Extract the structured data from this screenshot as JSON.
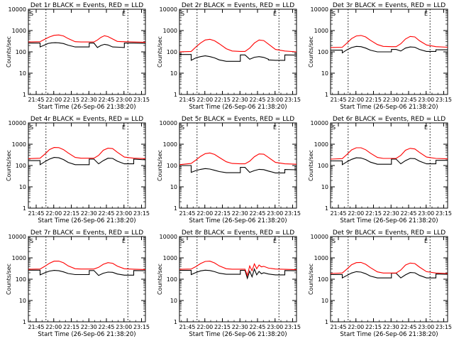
{
  "figure": {
    "xlabel": "Start Time (26-Sep-06 21:38:20)",
    "ylabel": "Counts/sec",
    "x_tick_labels": [
      "21:45",
      "22:00",
      "22:15",
      "22:30",
      "22:45",
      "23:00",
      "23:15"
    ],
    "y_tick_labels": [
      "1",
      "10",
      "100",
      "1000",
      "10000"
    ],
    "corner_marker_left": "S",
    "corner_marker_right": "E"
  },
  "colors": {
    "events": "#000000",
    "lld": "#ff0000",
    "markers": "#000000"
  },
  "chart_data": [
    {
      "type": "line",
      "title": "Det 1r BLACK = Events, RED = LLD",
      "x_unit": "minutes after 21:38:20",
      "xlim": [
        0,
        100
      ],
      "ylim": [
        1,
        10000
      ],
      "y_scale": "log",
      "vlines": [
        15,
        85
      ],
      "series": [
        {
          "name": "Events",
          "x": [
            0,
            10,
            10,
            14,
            17,
            20,
            23,
            26,
            30,
            34,
            40,
            45,
            52,
            52,
            56,
            59,
            62,
            65,
            68,
            72,
            72,
            78,
            82,
            82,
            90,
            100
          ],
          "values": [
            260,
            260,
            170,
            210,
            250,
            265,
            270,
            265,
            245,
            205,
            170,
            170,
            170,
            260,
            260,
            160,
            200,
            225,
            210,
            170,
            170,
            165,
            160,
            260,
            260,
            250
          ]
        },
        {
          "name": "LLD",
          "x": [
            0,
            10,
            14,
            18,
            22,
            26,
            30,
            34,
            40,
            45,
            52,
            56,
            59,
            62,
            65,
            68,
            72,
            76,
            80,
            82,
            90,
            100
          ],
          "values": [
            290,
            300,
            390,
            500,
            600,
            620,
            560,
            420,
            300,
            290,
            290,
            290,
            360,
            480,
            570,
            520,
            400,
            310,
            300,
            300,
            290,
            280
          ]
        }
      ]
    },
    {
      "type": "line",
      "title": "Det 2r BLACK = Events, RED = LLD",
      "x_unit": "minutes after 21:38:20",
      "xlim": [
        0,
        100
      ],
      "ylim": [
        1,
        10000
      ],
      "y_scale": "log",
      "vlines": [
        15,
        85
      ],
      "series": [
        {
          "name": "Events",
          "x": [
            0,
            10,
            10,
            14,
            18,
            22,
            26,
            30,
            34,
            40,
            45,
            52,
            52,
            56,
            60,
            64,
            68,
            72,
            76,
            76,
            82,
            90,
            90,
            100
          ],
          "values": [
            75,
            75,
            40,
            52,
            60,
            65,
            60,
            52,
            42,
            36,
            36,
            36,
            72,
            72,
            45,
            56,
            60,
            55,
            45,
            42,
            40,
            40,
            72,
            70
          ]
        },
        {
          "name": "LLD",
          "x": [
            0,
            10,
            14,
            18,
            22,
            26,
            30,
            34,
            40,
            45,
            52,
            56,
            60,
            64,
            68,
            72,
            76,
            82,
            90,
            100
          ],
          "values": [
            100,
            105,
            170,
            260,
            360,
            390,
            330,
            240,
            140,
            110,
            105,
            105,
            150,
            260,
            360,
            340,
            230,
            130,
            110,
            100
          ]
        }
      ]
    },
    {
      "type": "line",
      "title": "Det 3r BLACK = Events, RED = LLD",
      "x_unit": "minutes after 21:38:20",
      "xlim": [
        0,
        100
      ],
      "ylim": [
        1,
        10000
      ],
      "y_scale": "log",
      "vlines": [
        15,
        85
      ],
      "series": [
        {
          "name": "Events",
          "x": [
            0,
            10,
            10,
            14,
            18,
            22,
            26,
            30,
            34,
            40,
            45,
            52,
            52,
            56,
            60,
            64,
            68,
            72,
            76,
            82,
            82,
            90,
            90,
            100
          ],
          "values": [
            120,
            120,
            90,
            125,
            160,
            180,
            175,
            150,
            120,
            100,
            100,
            100,
            130,
            130,
            110,
            150,
            170,
            165,
            130,
            105,
            105,
            105,
            125,
            125
          ]
        },
        {
          "name": "LLD",
          "x": [
            0,
            10,
            14,
            18,
            22,
            26,
            30,
            34,
            40,
            45,
            52,
            56,
            60,
            64,
            68,
            72,
            76,
            82,
            90,
            100
          ],
          "values": [
            160,
            165,
            260,
            420,
            560,
            590,
            500,
            350,
            220,
            180,
            175,
            175,
            240,
            400,
            530,
            500,
            330,
            210,
            175,
            165
          ]
        }
      ]
    },
    {
      "type": "line",
      "title": "Det 4r BLACK = Events, RED = LLD",
      "x_unit": "minutes after 21:38:20",
      "xlim": [
        0,
        100
      ],
      "ylim": [
        1,
        10000
      ],
      "y_scale": "log",
      "vlines": [
        15,
        85
      ],
      "series": [
        {
          "name": "Events",
          "x": [
            0,
            10,
            10,
            14,
            18,
            22,
            26,
            30,
            34,
            40,
            45,
            52,
            52,
            56,
            60,
            64,
            68,
            72,
            76,
            82,
            82,
            90,
            90,
            100
          ],
          "values": [
            170,
            170,
            110,
            150,
            200,
            240,
            230,
            190,
            140,
            110,
            110,
            110,
            200,
            200,
            120,
            170,
            220,
            215,
            160,
            120,
            120,
            120,
            200,
            185
          ]
        },
        {
          "name": "LLD",
          "x": [
            0,
            10,
            14,
            18,
            22,
            26,
            30,
            34,
            40,
            45,
            52,
            56,
            60,
            64,
            68,
            72,
            76,
            82,
            90,
            100
          ],
          "values": [
            210,
            220,
            340,
            560,
            700,
            690,
            560,
            390,
            240,
            220,
            220,
            220,
            300,
            520,
            650,
            620,
            420,
            250,
            220,
            210
          ]
        }
      ]
    },
    {
      "type": "line",
      "title": "Det 5r BLACK = Events, RED = LLD",
      "x_unit": "minutes after 21:38:20",
      "xlim": [
        0,
        100
      ],
      "ylim": [
        1,
        10000
      ],
      "y_scale": "log",
      "vlines": [
        15,
        85
      ],
      "series": [
        {
          "name": "Events",
          "x": [
            0,
            10,
            10,
            14,
            18,
            22,
            26,
            30,
            34,
            40,
            45,
            52,
            52,
            56,
            60,
            64,
            68,
            72,
            76,
            82,
            82,
            90,
            90,
            100
          ],
          "values": [
            100,
            100,
            48,
            58,
            66,
            72,
            68,
            60,
            52,
            46,
            46,
            46,
            82,
            82,
            48,
            58,
            66,
            64,
            55,
            45,
            45,
            45,
            65,
            63
          ]
        },
        {
          "name": "LLD",
          "x": [
            0,
            10,
            14,
            18,
            22,
            26,
            30,
            34,
            40,
            45,
            52,
            56,
            60,
            64,
            68,
            72,
            76,
            82,
            90,
            100
          ],
          "values": [
            110,
            125,
            180,
            270,
            360,
            390,
            330,
            240,
            150,
            125,
            120,
            120,
            160,
            260,
            350,
            340,
            240,
            140,
            120,
            115
          ]
        }
      ]
    },
    {
      "type": "line",
      "title": "Det 6r BLACK = Events, RED = LLD",
      "x_unit": "minutes after 21:38:20",
      "xlim": [
        0,
        100
      ],
      "ylim": [
        1,
        10000
      ],
      "y_scale": "log",
      "vlines": [
        15,
        85
      ],
      "series": [
        {
          "name": "Events",
          "x": [
            0,
            10,
            10,
            14,
            18,
            22,
            26,
            30,
            34,
            40,
            45,
            52,
            52,
            56,
            60,
            64,
            68,
            72,
            76,
            82,
            82,
            90,
            90,
            100
          ],
          "values": [
            165,
            165,
            110,
            150,
            195,
            230,
            225,
            190,
            145,
            115,
            115,
            115,
            200,
            200,
            120,
            170,
            215,
            210,
            160,
            120,
            120,
            120,
            175,
            175
          ]
        },
        {
          "name": "LLD",
          "x": [
            0,
            10,
            14,
            18,
            22,
            26,
            30,
            34,
            40,
            45,
            52,
            56,
            60,
            64,
            68,
            72,
            76,
            82,
            90,
            100
          ],
          "values": [
            200,
            210,
            330,
            540,
            680,
            680,
            550,
            380,
            240,
            215,
            215,
            215,
            300,
            520,
            640,
            600,
            410,
            250,
            215,
            205
          ]
        }
      ]
    },
    {
      "type": "line",
      "title": "Det 7r BLACK = Events, RED = LLD",
      "x_unit": "minutes after 21:38:20",
      "xlim": [
        0,
        100
      ],
      "ylim": [
        1,
        10000
      ],
      "y_scale": "log",
      "vlines": [
        15,
        85
      ],
      "series": [
        {
          "name": "Events",
          "x": [
            0,
            10,
            10,
            14,
            18,
            22,
            26,
            30,
            34,
            40,
            45,
            52,
            52,
            56,
            60,
            64,
            68,
            72,
            76,
            82,
            82,
            90,
            90,
            100
          ],
          "values": [
            265,
            265,
            160,
            200,
            240,
            260,
            250,
            220,
            185,
            165,
            165,
            165,
            255,
            255,
            150,
            190,
            215,
            210,
            175,
            155,
            155,
            155,
            255,
            250
          ]
        },
        {
          "name": "LLD",
          "x": [
            0,
            10,
            14,
            18,
            22,
            26,
            30,
            34,
            40,
            45,
            52,
            56,
            60,
            64,
            68,
            72,
            76,
            82,
            90,
            100
          ],
          "values": [
            290,
            300,
            400,
            560,
            700,
            710,
            590,
            420,
            310,
            300,
            300,
            300,
            360,
            500,
            600,
            560,
            410,
            310,
            295,
            285
          ]
        }
      ]
    },
    {
      "type": "line",
      "title": "Det 8r BLACK = Events, RED = LLD",
      "x_unit": "minutes after 21:38:20",
      "xlim": [
        0,
        100
      ],
      "ylim": [
        1,
        10000
      ],
      "y_scale": "log",
      "vlines": [
        15,
        85
      ],
      "series": [
        {
          "name": "Events",
          "x": [
            0,
            10,
            10,
            14,
            18,
            22,
            26,
            30,
            34,
            40,
            45,
            52,
            52,
            56,
            58,
            60,
            62,
            64,
            66,
            68,
            70,
            72,
            76,
            82,
            82,
            90,
            90,
            100
          ],
          "values": [
            260,
            260,
            165,
            205,
            245,
            265,
            255,
            225,
            190,
            170,
            170,
            170,
            260,
            260,
            110,
            240,
            130,
            300,
            160,
            230,
            180,
            200,
            175,
            160,
            160,
            160,
            255,
            250
          ]
        },
        {
          "name": "LLD",
          "x": [
            0,
            10,
            14,
            18,
            22,
            26,
            30,
            34,
            40,
            45,
            52,
            56,
            58,
            60,
            62,
            64,
            66,
            68,
            70,
            72,
            76,
            82,
            90,
            100
          ],
          "values": [
            290,
            300,
            390,
            540,
            680,
            700,
            580,
            420,
            310,
            295,
            295,
            295,
            150,
            420,
            250,
            520,
            310,
            460,
            380,
            400,
            330,
            300,
            290,
            280
          ]
        }
      ]
    },
    {
      "type": "line",
      "title": "Det 9r BLACK = Events, RED = LLD",
      "x_unit": "minutes after 21:38:20",
      "xlim": [
        0,
        100
      ],
      "ylim": [
        1,
        10000
      ],
      "y_scale": "log",
      "vlines": [
        15,
        85
      ],
      "series": [
        {
          "name": "Events",
          "x": [
            0,
            10,
            10,
            14,
            18,
            22,
            26,
            30,
            34,
            40,
            45,
            52,
            52,
            56,
            60,
            64,
            68,
            72,
            76,
            82,
            82,
            90,
            90,
            100
          ],
          "values": [
            165,
            165,
            115,
            150,
            195,
            225,
            215,
            180,
            140,
            115,
            115,
            115,
            190,
            190,
            115,
            160,
            205,
            200,
            150,
            115,
            115,
            115,
            175,
            170
          ]
        },
        {
          "name": "LLD",
          "x": [
            0,
            10,
            14,
            18,
            22,
            26,
            30,
            34,
            40,
            45,
            52,
            56,
            60,
            64,
            68,
            72,
            76,
            82,
            90,
            100
          ],
          "values": [
            185,
            195,
            300,
            480,
            600,
            610,
            500,
            350,
            220,
            195,
            195,
            195,
            270,
            460,
            570,
            540,
            370,
            225,
            195,
            185
          ]
        }
      ]
    }
  ]
}
